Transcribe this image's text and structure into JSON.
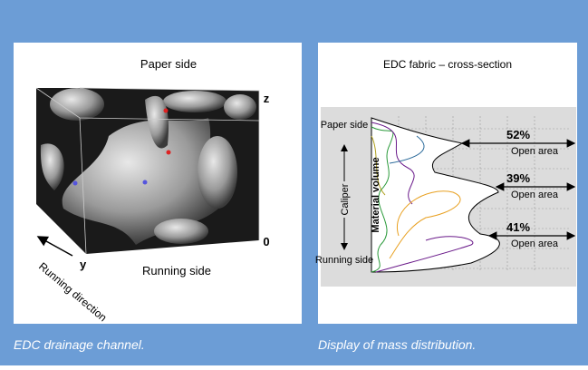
{
  "left": {
    "title": "Paper side",
    "axis_z": "z",
    "axis_zero": "0",
    "axis_y": "y",
    "direction": "Running direction",
    "bottom": "Running side",
    "caption": "EDC drainage channel."
  },
  "right": {
    "title": "EDC fabric – cross-section",
    "top_label": "Paper side",
    "caliper": "Caliper",
    "bottom_label": "Running side",
    "volume": "Material volume",
    "annotations": [
      {
        "percent": "52%",
        "label": "Open area"
      },
      {
        "percent": "39%",
        "label": "Open area"
      },
      {
        "percent": "41%",
        "label": "Open area"
      }
    ],
    "caption": "Display of mass distribution."
  }
}
